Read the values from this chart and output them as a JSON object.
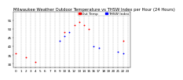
{
  "title": "Milwaukee Weather Outdoor Temperature vs THSW Index per Hour (24 Hours)",
  "background_color": "#ffffff",
  "plot_bg_color": "#ffffff",
  "grid_color": "#aaaaaa",
  "hours": [
    0,
    1,
    2,
    3,
    4,
    5,
    6,
    7,
    8,
    9,
    10,
    11,
    12,
    13,
    14,
    15,
    16,
    17,
    18,
    19,
    20,
    21,
    22,
    23
  ],
  "temp_values": [
    36,
    null,
    34,
    null,
    31,
    null,
    null,
    null,
    null,
    null,
    48,
    null,
    52,
    54,
    52,
    50,
    null,
    null,
    null,
    null,
    null,
    null,
    43,
    null
  ],
  "thsw_values": [
    null,
    null,
    null,
    null,
    null,
    null,
    null,
    null,
    null,
    43,
    46,
    48,
    null,
    null,
    null,
    null,
    40,
    39,
    null,
    null,
    null,
    37,
    36,
    null
  ],
  "temp_color": "#ff0000",
  "thsw_color": "#0000ff",
  "legend_temp_label": "Out Temp",
  "legend_thsw_label": "THSW Index",
  "ylim_min": 28,
  "ylim_max": 60,
  "xlim_min": -0.5,
  "xlim_max": 23.5,
  "yticks": [
    30,
    35,
    40,
    45,
    50,
    55
  ],
  "title_fontsize": 3.8,
  "tick_fontsize": 3.0,
  "legend_fontsize": 3.2,
  "marker_size": 1.8
}
